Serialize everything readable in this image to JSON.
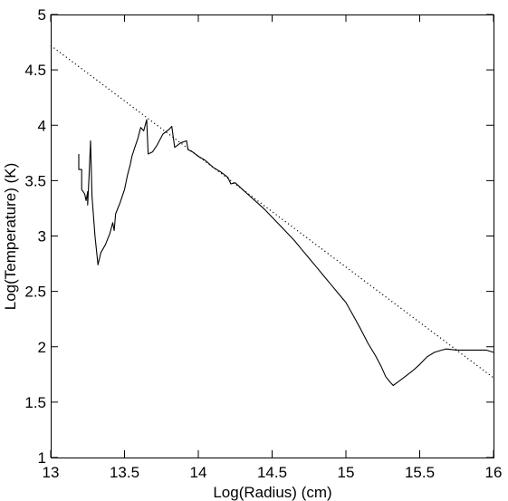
{
  "chart_data": {
    "type": "line",
    "xlabel": "Log(Radius) (cm)",
    "ylabel": "Log(Temperature) (K)",
    "xlim": [
      13,
      16
    ],
    "ylim": [
      1,
      5
    ],
    "x_ticks": [
      13,
      13.5,
      14,
      14.5,
      15,
      15.5,
      16
    ],
    "x_tick_labels": [
      "13",
      "13.5",
      "14",
      "14.5",
      "15",
      "15.5",
      "16"
    ],
    "y_ticks": [
      1,
      1.5,
      2,
      2.5,
      3,
      3.5,
      4,
      4.5,
      5
    ],
    "y_tick_labels": [
      "1",
      "1.5",
      "2",
      "2.5",
      "3",
      "3.5",
      "4",
      "4.5",
      "5"
    ],
    "grid": false,
    "series": [
      {
        "style": "solid",
        "color": "#000000",
        "points": [
          [
            13.19,
            3.74
          ],
          [
            13.19,
            3.6
          ],
          [
            13.21,
            3.6
          ],
          [
            13.21,
            3.42
          ],
          [
            13.23,
            3.38
          ],
          [
            13.24,
            3.32
          ],
          [
            13.25,
            3.4
          ],
          [
            13.25,
            3.28
          ],
          [
            13.26,
            3.55
          ],
          [
            13.27,
            3.86
          ],
          [
            13.28,
            3.36
          ],
          [
            13.3,
            3.0
          ],
          [
            13.32,
            2.74
          ],
          [
            13.34,
            2.85
          ],
          [
            13.37,
            2.92
          ],
          [
            13.4,
            3.02
          ],
          [
            13.42,
            3.12
          ],
          [
            13.43,
            3.05
          ],
          [
            13.44,
            3.2
          ],
          [
            13.47,
            3.3
          ],
          [
            13.5,
            3.42
          ],
          [
            13.52,
            3.55
          ],
          [
            13.54,
            3.65
          ],
          [
            13.55,
            3.72
          ],
          [
            13.57,
            3.8
          ],
          [
            13.59,
            3.88
          ],
          [
            13.61,
            3.98
          ],
          [
            13.63,
            3.95
          ],
          [
            13.65,
            4.05
          ],
          [
            13.66,
            3.74
          ],
          [
            13.69,
            3.76
          ],
          [
            13.72,
            3.82
          ],
          [
            13.76,
            3.92
          ],
          [
            13.8,
            3.96
          ],
          [
            13.82,
            3.99
          ],
          [
            13.84,
            3.8
          ],
          [
            13.88,
            3.84
          ],
          [
            13.92,
            3.86
          ],
          [
            13.93,
            3.78
          ],
          [
            13.96,
            3.76
          ],
          [
            14.0,
            3.72
          ],
          [
            14.05,
            3.68
          ],
          [
            14.1,
            3.62
          ],
          [
            14.15,
            3.58
          ],
          [
            14.2,
            3.53
          ],
          [
            14.22,
            3.47
          ],
          [
            14.25,
            3.48
          ],
          [
            14.3,
            3.42
          ],
          [
            14.35,
            3.36
          ],
          [
            14.4,
            3.3
          ],
          [
            14.45,
            3.24
          ],
          [
            14.5,
            3.17
          ],
          [
            14.55,
            3.1
          ],
          [
            14.6,
            3.03
          ],
          [
            14.65,
            2.96
          ],
          [
            14.7,
            2.88
          ],
          [
            14.75,
            2.8
          ],
          [
            14.8,
            2.72
          ],
          [
            14.85,
            2.64
          ],
          [
            14.9,
            2.56
          ],
          [
            14.95,
            2.48
          ],
          [
            15.0,
            2.4
          ],
          [
            15.05,
            2.28
          ],
          [
            15.1,
            2.16
          ],
          [
            15.15,
            2.03
          ],
          [
            15.2,
            1.92
          ],
          [
            15.24,
            1.82
          ],
          [
            15.27,
            1.73
          ],
          [
            15.3,
            1.68
          ],
          [
            15.32,
            1.65
          ],
          [
            15.35,
            1.68
          ],
          [
            15.4,
            1.73
          ],
          [
            15.45,
            1.78
          ],
          [
            15.5,
            1.84
          ],
          [
            15.55,
            1.91
          ],
          [
            15.6,
            1.95
          ],
          [
            15.65,
            1.97
          ],
          [
            15.68,
            1.98
          ],
          [
            15.75,
            1.97
          ],
          [
            15.85,
            1.97
          ],
          [
            15.95,
            1.97
          ],
          [
            16.0,
            1.95
          ]
        ]
      },
      {
        "style": "dotted",
        "color": "#000000",
        "points": [
          [
            13.0,
            4.72
          ],
          [
            16.0,
            1.72
          ]
        ]
      }
    ]
  }
}
